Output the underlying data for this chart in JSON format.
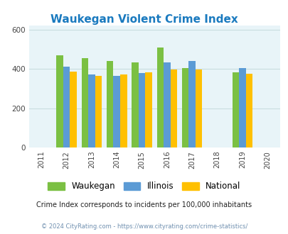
{
  "title": "Waukegan Violent Crime Index",
  "title_color": "#1a7abf",
  "years": [
    2012,
    2013,
    2014,
    2015,
    2016,
    2017,
    2019
  ],
  "waukegan": [
    470,
    455,
    440,
    435,
    510,
    405,
    383
  ],
  "illinois": [
    412,
    370,
    365,
    380,
    435,
    442,
    405
  ],
  "national": [
    388,
    363,
    372,
    383,
    398,
    396,
    376
  ],
  "bar_color_waukegan": "#7bc043",
  "bar_color_illinois": "#5b9bd5",
  "bar_color_national": "#ffc000",
  "background_color": "#e8f4f8",
  "xlim": [
    2010.5,
    2020.5
  ],
  "ylim": [
    0,
    620
  ],
  "yticks": [
    0,
    200,
    400,
    600
  ],
  "xticks": [
    2011,
    2012,
    2013,
    2014,
    2015,
    2016,
    2017,
    2018,
    2019,
    2020
  ],
  "footnote1": "Crime Index corresponds to incidents per 100,000 inhabitants",
  "footnote2": "© 2024 CityRating.com - https://www.cityrating.com/crime-statistics/",
  "footnote1_color": "#222222",
  "footnote2_color": "#7090b0",
  "legend_labels": [
    "Waukegan",
    "Illinois",
    "National"
  ],
  "bar_width": 0.27,
  "grid_color": "#c8dde0"
}
